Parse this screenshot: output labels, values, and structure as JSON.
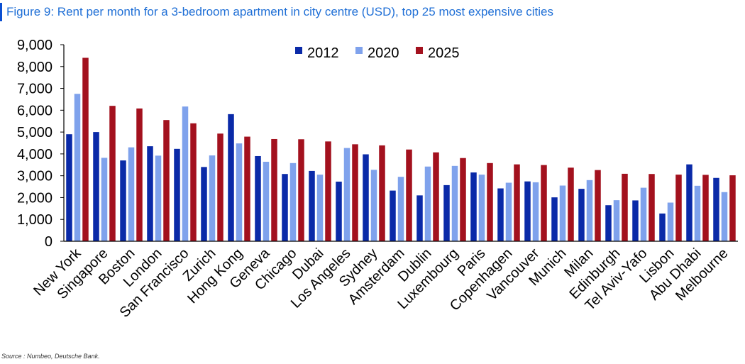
{
  "title": "Figure 9: Rent per month for a 3-bedroom apartment in city centre (USD), top 25 most expensive cities",
  "source": "Source : Numbeo, Deutsche Bank.",
  "chart_data": {
    "type": "bar",
    "title": "Figure 9: Rent per month for a 3-bedroom apartment in city centre (USD), top 25 most expensive cities",
    "xlabel": "",
    "ylabel": "",
    "ylim": [
      0,
      9000
    ],
    "yticks": [
      "0",
      "1,000",
      "2,000",
      "3,000",
      "4,000",
      "5,000",
      "6,000",
      "7,000",
      "8,000",
      "9,000"
    ],
    "grid": false,
    "legend_position": "top-center",
    "categories": [
      "New York",
      "Singapore",
      "Boston",
      "London",
      "San Francisco",
      "Zurich",
      "Hong Kong",
      "Geneva",
      "Chicago",
      "Dubai",
      "Los Angeles",
      "Sydney",
      "Amsterdam",
      "Dublin",
      "Luxembourg",
      "Paris",
      "Copenhagen",
      "Vancouver",
      "Munich",
      "Milan",
      "Edinburgh",
      "Tel Aviv-Yafo",
      "Lisbon",
      "Abu Dhabi",
      "Melbourne"
    ],
    "series": [
      {
        "name": "2012",
        "color": "#0a2aa8",
        "values": [
          4900,
          5000,
          3700,
          4350,
          4230,
          3400,
          5820,
          3900,
          3080,
          3220,
          2730,
          3980,
          2320,
          2100,
          2570,
          3150,
          2420,
          2740,
          2010,
          2400,
          1650,
          1870,
          1270,
          3520,
          2900
        ]
      },
      {
        "name": "2020",
        "color": "#7fa2ec",
        "values": [
          6750,
          3820,
          4300,
          3920,
          6170,
          3930,
          4480,
          3640,
          3580,
          3050,
          4270,
          3270,
          2950,
          3420,
          3450,
          3050,
          2680,
          2700,
          2550,
          2800,
          1880,
          2450,
          1770,
          2540,
          2250
        ]
      },
      {
        "name": "2025",
        "color": "#a3111e",
        "values": [
          8400,
          6200,
          6080,
          5550,
          5400,
          4930,
          4790,
          4680,
          4670,
          4570,
          4440,
          4390,
          4200,
          4070,
          3810,
          3580,
          3520,
          3490,
          3370,
          3260,
          3090,
          3080,
          3050,
          3040,
          3020
        ]
      }
    ]
  }
}
